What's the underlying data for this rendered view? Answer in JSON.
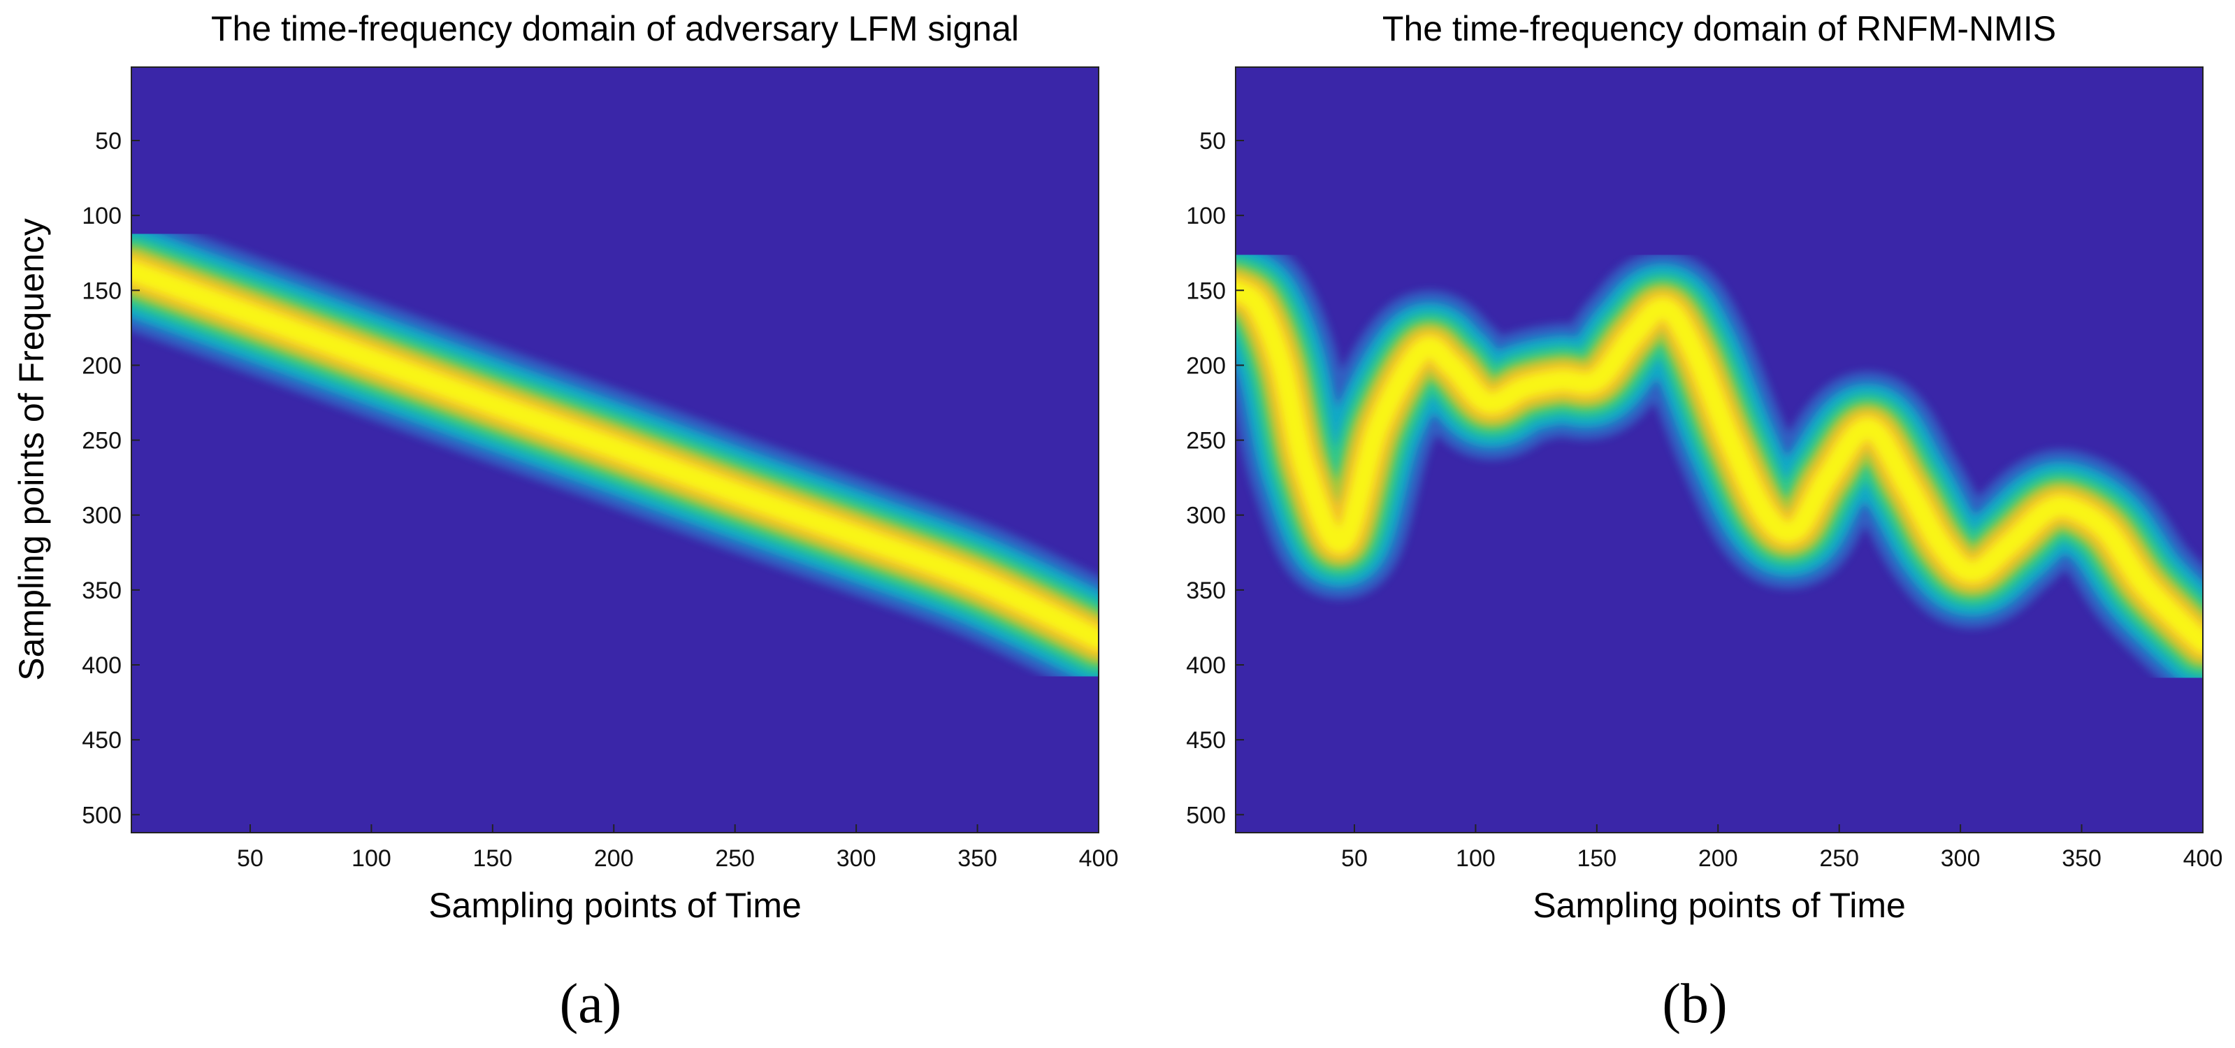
{
  "chart_data": [
    {
      "type": "heatmap",
      "panel_label": "(a)",
      "title": "The time-frequency domain of adversary LFM signal",
      "xlabel": "Sampling points of Time",
      "ylabel": "Sampling points of Frequency",
      "xlim": [
        1,
        400
      ],
      "ylim": [
        1,
        512
      ],
      "y_reversed": true,
      "xticks": [
        50,
        100,
        150,
        200,
        250,
        300,
        350,
        400
      ],
      "yticks": [
        50,
        100,
        150,
        200,
        250,
        300,
        350,
        400,
        450,
        500
      ],
      "colormap": "parula",
      "background_color": "#3a26a8",
      "ridge": {
        "time": [
          1,
          50,
          100,
          150,
          200,
          250,
          300,
          350,
          400
        ],
        "frequency": [
          137,
          166,
          196,
          226,
          255,
          285,
          314,
          344,
          383
        ]
      },
      "ridge_halfwidth_frequency": 26
    },
    {
      "type": "heatmap",
      "panel_label": "(b)",
      "title": "The time-frequency domain of RNFM-NMIS",
      "xlabel": "Sampling points of Time",
      "ylabel": "",
      "xlim": [
        1,
        400
      ],
      "ylim": [
        1,
        512
      ],
      "y_reversed": true,
      "xticks": [
        50,
        100,
        150,
        200,
        250,
        300,
        350,
        400
      ],
      "yticks": [
        50,
        100,
        150,
        200,
        250,
        300,
        350,
        400,
        450,
        500
      ],
      "colormap": "parula",
      "background_color": "#3a26a8",
      "ridge": {
        "time": [
          1,
          10,
          20,
          30,
          45,
          60,
          78,
          90,
          105,
          120,
          135,
          150,
          165,
          178,
          190,
          205,
          220,
          232,
          245,
          262,
          278,
          292,
          305,
          320,
          335,
          345,
          360,
          375,
          390,
          400
        ],
        "frequency": [
          150,
          160,
          200,
          270,
          318,
          240,
          190,
          200,
          225,
          215,
          210,
          210,
          180,
          162,
          190,
          250,
          300,
          310,
          275,
          242,
          280,
          320,
          338,
          320,
          298,
          295,
          310,
          345,
          370,
          385
        ]
      },
      "ridge_halfwidth_frequency": 26
    }
  ]
}
